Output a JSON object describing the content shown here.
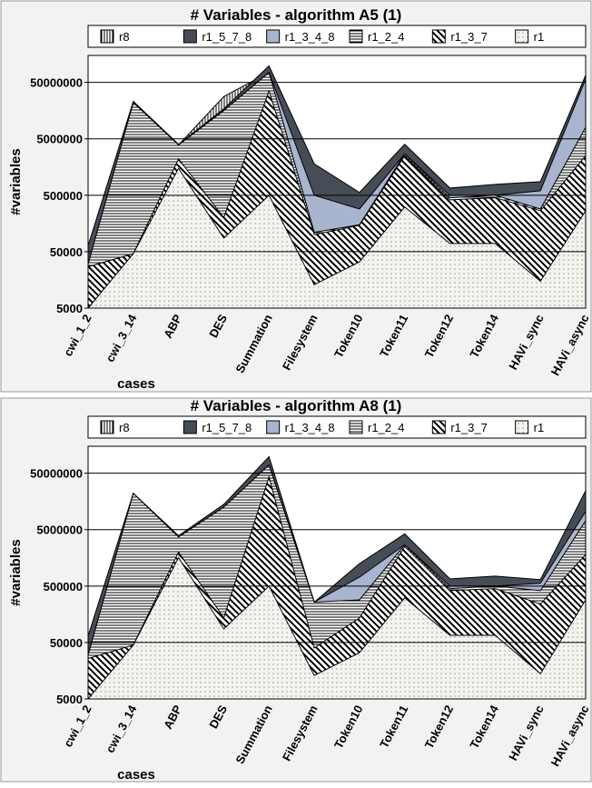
{
  "chart_data": [
    {
      "type": "area",
      "title": "# Variables - algorithm A5 (1)",
      "x_label": "cases",
      "y_label": "#variables",
      "log_scale": true,
      "grid": true,
      "legend": "top",
      "categories": [
        "cwi_1_2",
        "cwi_3_14",
        "ABP",
        "DES",
        "Summation",
        "Filesystem",
        "Token10",
        "Token11",
        "Token12",
        "Token14",
        "HAVi_sync",
        "HAVi_async"
      ],
      "ylim": [
        5000,
        150000000
      ],
      "yticks": [
        5000,
        50000,
        500000,
        5000000,
        50000000
      ],
      "series": [
        {
          "name": "r8",
          "color": "#ffffff",
          "pattern": "vertical",
          "values": [
            30000,
            22000000,
            3900000,
            28000000,
            75000000,
            110000,
            150000,
            2700000,
            450000,
            500000,
            285000,
            8000000
          ]
        },
        {
          "name": "r1_5_7_8",
          "color": "#474d57",
          "pattern": "solid",
          "values": [
            64000,
            23000000,
            4000000,
            17000000,
            98000000,
            1800000,
            560000,
            4000000,
            670000,
            780000,
            870000,
            67000000
          ]
        },
        {
          "name": "r1_3_4_8",
          "color": "#a9b5cf",
          "pattern": "solid",
          "values": [
            30000,
            22000000,
            3900000,
            15800000,
            75000000,
            500000,
            285000,
            2700000,
            500000,
            500000,
            600000,
            57000000
          ]
        },
        {
          "name": "r1_2_4",
          "color": "#ffffff",
          "pattern": "horizontal",
          "values": [
            30000,
            22000000,
            3900000,
            15800000,
            75000000,
            110000,
            150000,
            2700000,
            450000,
            500000,
            285000,
            8000000
          ]
        },
        {
          "name": "r1_3_7",
          "color": "#ffffff",
          "pattern": "diagonal",
          "values": [
            27000,
            46000,
            2200000,
            200000,
            35000000,
            100000,
            147000,
            2500000,
            415000,
            450000,
            266000,
            2500000
          ]
        },
        {
          "name": "r1",
          "color": "#f3f4ee",
          "pattern": "dots",
          "values": [
            5000,
            46000,
            1500000,
            87000,
            500000,
            13000,
            33000,
            310000,
            70000,
            70000,
            15000,
            266000
          ]
        }
      ]
    },
    {
      "type": "area",
      "title": "# Variables - algorithm A8 (1)",
      "x_label": "cases",
      "y_label": "#variables",
      "log_scale": true,
      "grid": true,
      "legend": "top",
      "categories": [
        "cwi_1_2",
        "cwi_3_14",
        "ABP",
        "DES",
        "Summation",
        "Filesystem",
        "Token10",
        "Token11",
        "Token12",
        "Token14",
        "HAVi_sync",
        "HAVi_async"
      ],
      "ylim": [
        5000,
        150000000
      ],
      "yticks": [
        5000,
        50000,
        500000,
        5000000,
        50000000
      ],
      "series": [
        {
          "name": "r8",
          "color": "#ffffff",
          "pattern": "vertical",
          "values": [
            30000,
            22000000,
            3700000,
            12500000,
            70000000,
            260000,
            285000,
            2700000,
            450000,
            500000,
            415000,
            7200000
          ]
        },
        {
          "name": "r1_5_7_8",
          "color": "#474d57",
          "pattern": "solid",
          "values": [
            65000,
            22000000,
            3900000,
            14000000,
            98000000,
            260000,
            1250000,
            4200000,
            670000,
            750000,
            650000,
            24500000
          ]
        },
        {
          "name": "r1_3_4_8",
          "color": "#a9b5cf",
          "pattern": "solid",
          "values": [
            30000,
            22000000,
            3700000,
            12500000,
            70000000,
            260000,
            720000,
            2700000,
            500000,
            500000,
            560000,
            10500000
          ]
        },
        {
          "name": "r1_2_4",
          "color": "#ffffff",
          "pattern": "horizontal",
          "values": [
            30000,
            22000000,
            3700000,
            12500000,
            70000000,
            260000,
            285000,
            2700000,
            450000,
            500000,
            415000,
            7200000
          ]
        },
        {
          "name": "r1_3_7",
          "color": "#ffffff",
          "pattern": "diagonal",
          "values": [
            26000,
            45000,
            2000000,
            136000,
            43000000,
            40000,
            136000,
            2500000,
            415000,
            450000,
            240000,
            1800000
          ]
        },
        {
          "name": "r1",
          "color": "#f3f4ee",
          "pattern": "dots",
          "values": [
            5000,
            45000,
            1600000,
            87000,
            500000,
            13000,
            33000,
            310000,
            67000,
            67000,
            14000,
            285000
          ]
        }
      ]
    }
  ]
}
